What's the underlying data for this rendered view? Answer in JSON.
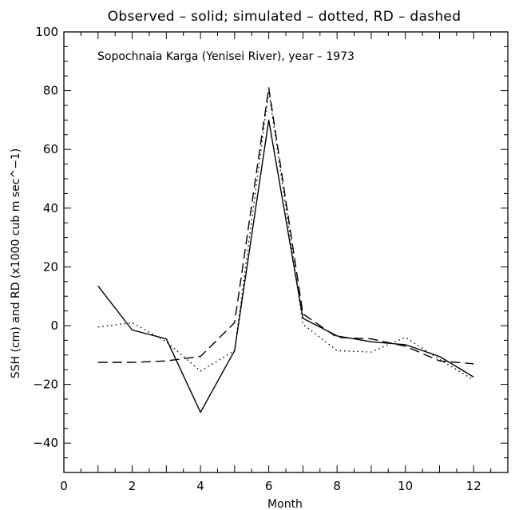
{
  "chart_data": {
    "type": "line",
    "title": "Observed – solid; simulated – dotted, RD – dashed",
    "annotation": "Sopochnaia Karga (Yenisei River), year – 1973",
    "xlabel": "Month",
    "ylabel": "SSH (cm) and RD (x1000 cub m sec^−1)",
    "xlim": [
      0,
      13
    ],
    "ylim": [
      -50,
      100
    ],
    "x_ticks": [
      0,
      2,
      4,
      6,
      8,
      10,
      12
    ],
    "x_tick_labels": [
      "0",
      "2",
      "4",
      "6",
      "8",
      "10",
      "12"
    ],
    "y_ticks": [
      -40,
      -20,
      0,
      20,
      40,
      60,
      80,
      100
    ],
    "y_tick_labels": [
      "−40",
      "−20",
      "0",
      "20",
      "40",
      "60",
      "80",
      "100"
    ],
    "x": [
      1,
      2,
      3,
      4,
      5,
      6,
      7,
      8,
      9,
      10,
      11,
      12
    ],
    "series": [
      {
        "style": "solid",
        "values": [
          13.5,
          -1.5,
          -4.5,
          -29.5,
          -8.5,
          70,
          2.5,
          -3.5,
          -5.5,
          -6.5,
          -10.5,
          -17.5
        ]
      },
      {
        "style": "dotted",
        "values": [
          -0.5,
          1,
          -5.5,
          -15.5,
          -8.5,
          80,
          0.5,
          -8.5,
          -9,
          -4,
          -11.5,
          -18.5
        ]
      },
      {
        "style": "dashed",
        "values": [
          -12.5,
          -12.5,
          -12,
          -10.5,
          1,
          81,
          4,
          -4,
          -4.5,
          -7,
          -12,
          -13
        ]
      }
    ],
    "grid": false,
    "color": "#000000"
  }
}
